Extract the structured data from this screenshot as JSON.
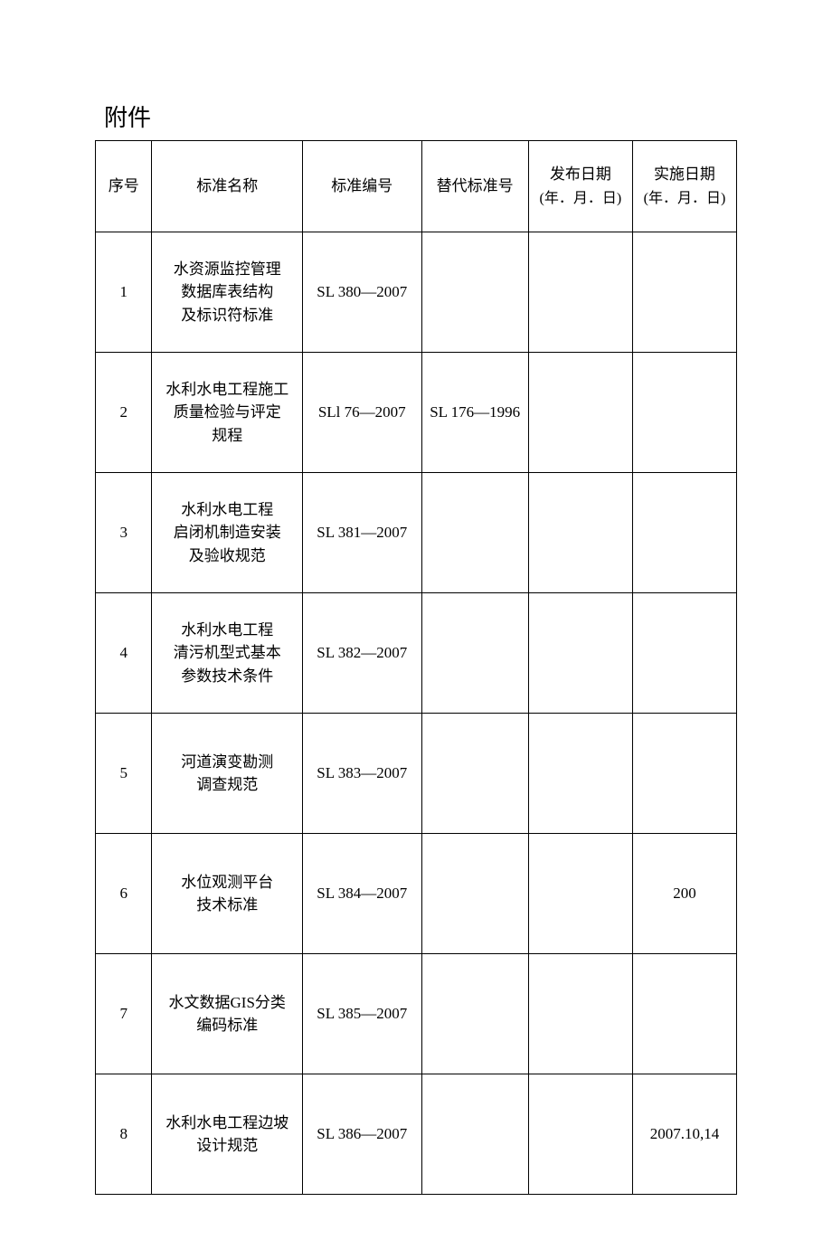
{
  "page": {
    "title": "附件"
  },
  "table": {
    "headers": {
      "seq": "序号",
      "name": "标准名称",
      "code": "标准编号",
      "replace": "替代标准号",
      "pub_date_l1": "发布日期",
      "pub_date_l2": "(年．月．日)",
      "impl_date_l1": "实施日期",
      "impl_date_l2": "(年．月．日)"
    },
    "rows": [
      {
        "seq": "1",
        "name_l1": "水资源监控管理",
        "name_l2": "数据库表结构",
        "name_l3": "及标识符标准",
        "code": "SL 380―2007",
        "replace": "",
        "pub": "",
        "impl": ""
      },
      {
        "seq": "2",
        "name_l1": "水利水电工程施工",
        "name_l2": "质量检验与评定",
        "name_l3": "规程",
        "code": "SLl 76—2007",
        "replace": "SL 176—1996",
        "pub": "",
        "impl": ""
      },
      {
        "seq": "3",
        "name_l1": "水利水电工程",
        "name_l2": "启闭机制造安装",
        "name_l3": "及验收规范",
        "code": "SL 381—2007",
        "replace": "",
        "pub": "",
        "impl": ""
      },
      {
        "seq": "4",
        "name_l1": "水利水电工程",
        "name_l2": "清污机型式基本",
        "name_l3": "参数技术条件",
        "code": "SL 382—2007",
        "replace": "",
        "pub": "",
        "impl": ""
      },
      {
        "seq": "5",
        "name_l1": "河道演变勘测",
        "name_l2": "调查规范",
        "name_l3": "",
        "code": "SL 383—2007",
        "replace": "",
        "pub": "",
        "impl": ""
      },
      {
        "seq": "6",
        "name_l1": "水位观测平台",
        "name_l2": "技术标准",
        "name_l3": "",
        "code": "SL 384—2007",
        "replace": "",
        "pub": "",
        "impl": "200"
      },
      {
        "seq": "7",
        "name_l1": "水文数据GIS分类",
        "name_l2": "编码标准",
        "name_l3": "",
        "code": "SL 385—2007",
        "replace": "",
        "pub": "",
        "impl": ""
      },
      {
        "seq": "8",
        "name_l1": "水利水电工程边坡",
        "name_l2": "设计规范",
        "name_l3": "",
        "code": "SL 386—2007",
        "replace": "",
        "pub": "",
        "impl": "2007.10,14"
      }
    ]
  }
}
